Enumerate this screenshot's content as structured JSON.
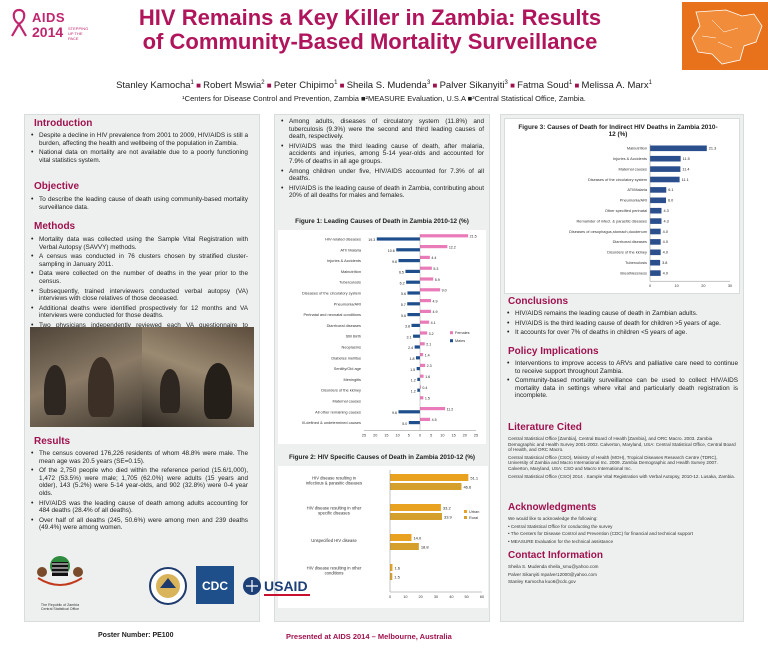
{
  "header": {
    "logo": {
      "aids": "AIDS",
      "year": "2014",
      "tagline": "STEPPING UP THE PACE"
    },
    "title_line1": "HIV Remains a Key Killer in Zambia: Results",
    "title_line2": "of Community-Based Mortality Surveillance",
    "authors": [
      {
        "name": "Stanley Kamocha",
        "sup": "1"
      },
      {
        "name": "Robert Mswia",
        "sup": "2"
      },
      {
        "name": "Peter Chipimo",
        "sup": "1"
      },
      {
        "name": "Sheila S. Mudenda",
        "sup": "3"
      },
      {
        "name": "Palver Sikanyiti",
        "sup": "3"
      },
      {
        "name": "Fatma Soud",
        "sup": "1"
      },
      {
        "name": "Melissa A. Marx",
        "sup": "1"
      }
    ],
    "affiliations": "¹Centers for Disease Control and Prevention, Zambia ■²MEASURE Evaluation, U.S.A ■³Central Statistical Office, Zambia."
  },
  "introduction": {
    "heading": "Introduction",
    "bullets": [
      "Despite a decline in HIV prevalence from 2001 to 2009, HIV/AIDS is still a burden, affecting the health and wellbeing of the population in Zambia.",
      "National data on mortality are not available due to a poorly functioning vital statistics system."
    ]
  },
  "objective": {
    "heading": "Objective",
    "bullets": [
      "To describe the leading cause of death using community-based mortality surveillance data."
    ]
  },
  "methods": {
    "heading": "Methods",
    "bullets": [
      "Mortality data was collected using the Sample Vital Registration with Verbal Autopsy (SAVVY) methods.",
      "A census was conducted in 76 clusters chosen by stratified cluster-sampling in January 2011.",
      "Data were collected on the number of deaths in the year prior to the census.",
      "Subsequently, trained interviewers conducted verbal autopsy (VA) interviews with close relatives of those deceased.",
      "Additional deaths were identified prospectively for 12 months and VA interviews were conducted for those deaths.",
      "Two physicians independently reviewed each VA questionnaire to determine probable cause of death using the ICD-10 coding principles."
    ]
  },
  "results": {
    "heading": "Results",
    "bullets": [
      "The census covered 176,226 residents of whom 48.8% were male. The mean age was 20.5 years (SE=0.15).",
      "Of the 2,750 people who died within the reference period (15.6/1,000), 1,472 (53.5%) were male; 1,705 (62.0%) were adults (15 years and older), 143 (5.2%) were 5-14 year-olds, and 902 (32.8%) were 0-4 year olds.",
      "HIV/AIDS was the leading cause of death among adults accounting for 484 deaths (28.4% of all deaths).",
      "Over half of all deaths (245, 50.6%) were among men and 239 deaths (49.4%) were among women."
    ]
  },
  "col2_bullets": [
    "Among adults, diseases of circulatory system (11.8%) and tuberculosis (9.3%) were the second and third leading causes of death, respectively.",
    "HIV/AIDS was the third leading cause of death, after malaria, accidents and injuries, among 5-14 year-olds and accounted for 7.9% of deaths in all age groups.",
    "Among children under five, HIV/AIDS accounted for 7.3% of all deaths.",
    "HIV/AIDS is the leading cause of death in Zambia, contributing about 20% of all deaths for males and females."
  ],
  "conclusions": {
    "heading": "Conclusions",
    "bullets": [
      "HIV/AIDS remains the leading cause of death in Zambian adults.",
      "HIV/AIDS is the third leading cause of death for children >5 years of age.",
      "It accounts for over 7% of deaths in children <5 years of age."
    ]
  },
  "policy": {
    "heading": "Policy Implications",
    "bullets": [
      "Interventions to improve access to ARVs and palliative care need to continue to receive support throughout Zambia.",
      "Community-based mortality surveillance can be used to collect HIV/AIDS mortality data in settings where vital and particularly death registration is incomplete."
    ]
  },
  "literature": {
    "heading": "Literature Cited",
    "items": [
      "Central Statistical Office [Zambia], Central Board of Health [Zambia], and ORC Macro. 2003. Zambia Demographic and Health Survey 2001-2002. Calverton, Maryland, USA: Central Statistical Office, Central Board of Health, and ORC Macro.",
      "Central Statistical Office (CSO), Ministry of Health (MOH), Tropical Diseases Research Centre (TDRC), University of Zambia and Macro International Inc. 2009. Zambia Demographic and Health Survey 2007. Calverton, Maryland, USA: CSO and Macro International Inc.",
      "Central Statistical Office (CSO) 2014 . Sample Vital Registration with Verbal Autopsy, 2010-12. Lusaka, Zambia."
    ]
  },
  "acknowledgments": {
    "heading": "Acknowledgments",
    "intro": "We would like to acknowledge the following:",
    "items": [
      "Central Statistical Office for conducting the survey",
      "The Centers for Disease Control and Prevention (CDC) for financial and technical support",
      "MEASURE Evaluation for the technical assistance"
    ]
  },
  "contact": {
    "heading": "Contact Information",
    "items": [
      "Sheila S. Mudenda sheila_smu@yahoo.com",
      "Palver Sikanyiti mpalver12000@yahoo.com",
      "Stanley Kamocha kuo6@cdc.gov"
    ]
  },
  "logos": {
    "zambia": "The Republic of Zambia\nCentral Statistical Office",
    "cdc": "CDC",
    "usaid": "USAID"
  },
  "footer": {
    "poster_number": "Poster Number: PE100",
    "presented": "Presented at AIDS 2014 – Melbourne, Australia"
  },
  "colors": {
    "accent": "#a0124f",
    "females": "#e97bb8",
    "males": "#1f4e8c",
    "urban": "#e8a21f",
    "rural": "#d4a02b",
    "indirect": "#2b4e8c"
  },
  "chart_data": [
    {
      "type": "bar",
      "orientation": "horizontal-diverging",
      "title": "Figure 1: Leading Causes of Death in Zambia 2010-12 (%)",
      "categories": [
        "HIV-related diseases",
        "ATI/ Malaria",
        "Injuries & Accidents",
        "Malnutrition",
        "Tuberculosis",
        "Diseases of the circulatory system",
        "Pneumonia/ARI",
        "Perinatal and neonatal conditions",
        "Diarrhoeal diseases",
        "Still Birth",
        "Neoplasms",
        "Diabetes mellitus",
        "Senility/Old age",
        "Meningitis",
        "Disorders of the kidney",
        "Maternal causes",
        "All other remaining causes",
        "Ill-defined & undetermined causes"
      ],
      "series": [
        {
          "name": "Females",
          "values": [
            21.5,
            12.2,
            4.4,
            5.3,
            5.9,
            9.0,
            4.9,
            4.9,
            4.1,
            3.2,
            2.1,
            1.4,
            2.3,
            1.6,
            0.4,
            1.5,
            11.2,
            4.5
          ]
        },
        {
          "name": "Males",
          "values": [
            19.3,
            10.6,
            9.6,
            6.5,
            6.2,
            5.6,
            5.7,
            5.6,
            3.8,
            3.1,
            2.4,
            1.8,
            1.5,
            1.2,
            1.2,
            0,
            9.6,
            5.0
          ]
        }
      ],
      "xticks": [
        "25",
        "20",
        "15",
        "10",
        "5",
        "0",
        "5",
        "10",
        "15",
        "20",
        "25"
      ],
      "xlim": [
        -25,
        25
      ],
      "legend": "right"
    },
    {
      "type": "bar",
      "orientation": "horizontal",
      "title": "Figure 2: HIV Specific Causes of Death in Zambia 2010-12 (%)",
      "categories": [
        "HIV disease resulting in infectious & parasitic diseases",
        "HIV disease resulting in other specific diseases",
        "Unspecified HIV disease",
        "HIV disease resulting in other conditions"
      ],
      "series": [
        {
          "name": "Urban",
          "values": [
            51.1,
            33.2,
            14.0,
            1.6
          ]
        },
        {
          "name": "Rural",
          "values": [
            46.6,
            33.9,
            18.8,
            1.5
          ]
        }
      ],
      "xticks": [
        "0",
        "10",
        "20",
        "30",
        "40",
        "50",
        "60"
      ],
      "xlim": [
        0,
        60
      ],
      "legend": "right"
    },
    {
      "type": "bar",
      "orientation": "horizontal",
      "title": "Figure 3: Causes of Death for Indirect HIV Deaths in Zambia 2010-12 (%)",
      "categories": [
        "Malnutrition",
        "Injuries & Accidents",
        "Maternal causes",
        "Diseases of the circulatory system",
        "ATI/Malaria",
        "Pneumonia/ARI",
        "Other specified perinatal",
        "Remainder of infect. & parasitic diseases",
        "Diseases of oesophagus,stomach,duodenum",
        "Diarrhoeal diseases",
        "Disorders of the kidney",
        "Tuberculosis",
        "Breathlessness"
      ],
      "series": [
        {
          "name": "",
          "values": [
            21.3,
            11.5,
            11.4,
            11.1,
            6.1,
            6.0,
            4.3,
            4.3,
            4.0,
            4.0,
            4.0,
            3.8,
            4.0
          ]
        }
      ],
      "xticks": [
        "0",
        "10",
        "20",
        "30"
      ],
      "xlim": [
        0,
        30
      ]
    }
  ]
}
